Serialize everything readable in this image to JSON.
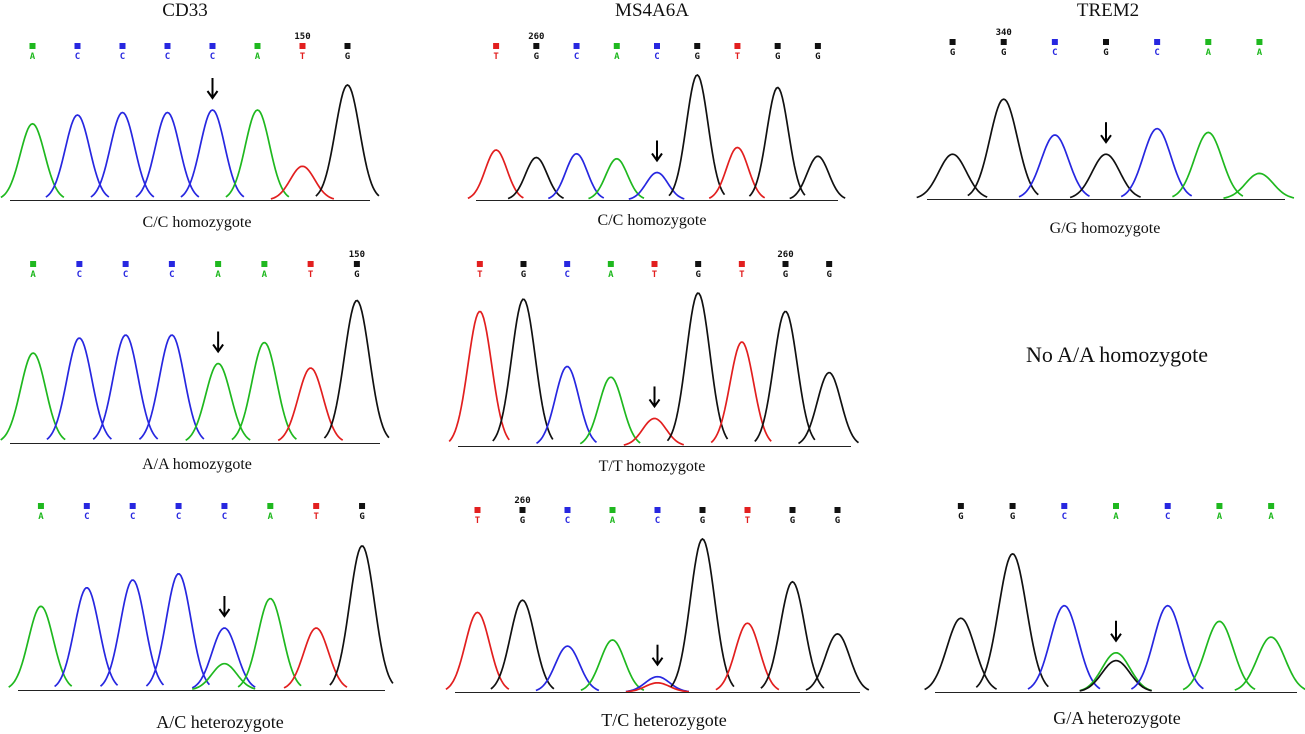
{
  "columns": [
    {
      "title": "CD33"
    },
    {
      "title": "MS4A6A"
    },
    {
      "title": "TREM2"
    }
  ],
  "colors": {
    "A": "#1fb81f",
    "C": "#2727e0",
    "G": "#111111",
    "T": "#e21f1f"
  },
  "panels": [
    {
      "gene": "CD33",
      "caption": "C/C homozygote",
      "bases": [
        "A",
        "C",
        "C",
        "C",
        "C",
        "A",
        "T",
        "G"
      ],
      "position_label": "150",
      "position_index": 6,
      "arrow_index": 4,
      "peaks": [
        [
          "A",
          0.61
        ],
        [
          "C",
          0.68
        ],
        [
          "C",
          0.7
        ],
        [
          "C",
          0.7
        ],
        [
          "C",
          0.72
        ],
        [
          "A",
          0.72
        ],
        [
          "T",
          0.27
        ],
        [
          "G",
          0.92
        ]
      ]
    },
    {
      "gene": "MS4A6A",
      "caption": "C/C homozygote",
      "bases": [
        "T",
        "G",
        "C",
        "A",
        "C",
        "G",
        "T",
        "G",
        "G"
      ],
      "position_label": "260",
      "position_index": 1,
      "arrow_index": 4,
      "peaks": [
        [
          "T",
          0.4
        ],
        [
          "G",
          0.34
        ],
        [
          "C",
          0.37
        ],
        [
          "A",
          0.33
        ],
        [
          "C",
          0.22
        ],
        [
          "G",
          1.0
        ],
        [
          "T",
          0.42
        ],
        [
          "G",
          0.9
        ],
        [
          "G",
          0.35
        ]
      ]
    },
    {
      "gene": "TREM2",
      "caption": "G/G homozygote",
      "bases": [
        "G",
        "G",
        "C",
        "G",
        "C",
        "A",
        "A"
      ],
      "position_label": "340",
      "position_index": 1,
      "arrow_index": 3,
      "peaks": [
        [
          "G",
          0.35
        ],
        [
          "G",
          0.78
        ],
        [
          "C",
          0.5
        ],
        [
          "G",
          0.35
        ],
        [
          "C",
          0.55
        ],
        [
          "A",
          0.52
        ],
        [
          "A",
          0.2
        ]
      ]
    },
    {
      "gene": "CD33",
      "caption": "A/A homozygote",
      "bases": [
        "A",
        "C",
        "C",
        "C",
        "A",
        "A",
        "T",
        "G"
      ],
      "position_label": "150",
      "position_index": 7,
      "arrow_index": 4,
      "peaks": [
        [
          "A",
          0.6
        ],
        [
          "C",
          0.7
        ],
        [
          "C",
          0.72
        ],
        [
          "C",
          0.72
        ],
        [
          "A",
          0.53
        ],
        [
          "A",
          0.67
        ],
        [
          "T",
          0.5
        ],
        [
          "G",
          0.95
        ]
      ]
    },
    {
      "gene": "MS4A6A",
      "caption": "T/T homozygote",
      "bases": [
        "T",
        "G",
        "C",
        "A",
        "T",
        "G",
        "T",
        "G",
        "G"
      ],
      "position_label": "260",
      "position_index": 7,
      "arrow_index": 4,
      "peaks": [
        [
          "T",
          0.88
        ],
        [
          "G",
          0.96
        ],
        [
          "C",
          0.52
        ],
        [
          "A",
          0.45
        ],
        [
          "T",
          0.18
        ],
        [
          "G",
          1.0
        ],
        [
          "T",
          0.68
        ],
        [
          "G",
          0.88
        ],
        [
          "G",
          0.48
        ]
      ]
    },
    {
      "gene": "TREM2",
      "note": "No A/A homozygote"
    },
    {
      "gene": "CD33",
      "caption": "A/C heterozygote",
      "bases": [
        "A",
        "C",
        "C",
        "C",
        "C",
        "A",
        "T",
        "G"
      ],
      "position_label": "",
      "position_index": -1,
      "arrow_index": 4,
      "peaks": [
        [
          "A",
          0.54
        ],
        [
          "C",
          0.66
        ],
        [
          "C",
          0.71
        ],
        [
          "C",
          0.75
        ],
        [
          "C",
          0.4,
          "A",
          0.17
        ],
        [
          "A",
          0.59
        ],
        [
          "T",
          0.4
        ],
        [
          "G",
          0.93
        ]
      ]
    },
    {
      "gene": "MS4A6A",
      "caption": "T/C heterozygote",
      "bases": [
        "T",
        "G",
        "C",
        "A",
        "C",
        "G",
        "T",
        "G",
        "G"
      ],
      "position_label": "260",
      "position_index": 1,
      "arrow_index": 4,
      "peaks": [
        [
          "T",
          0.52
        ],
        [
          "G",
          0.6
        ],
        [
          "C",
          0.3
        ],
        [
          "A",
          0.34
        ],
        [
          "C",
          0.1,
          "T",
          0.06
        ],
        [
          "G",
          1.0
        ],
        [
          "T",
          0.45
        ],
        [
          "G",
          0.72
        ],
        [
          "G",
          0.38
        ]
      ]
    },
    {
      "gene": "TREM2",
      "caption": "G/A heterozygote",
      "bases": [
        "G",
        "G",
        "C",
        "A",
        "C",
        "A",
        "A"
      ],
      "position_label": "",
      "position_index": -1,
      "arrow_index": 3,
      "peaks": [
        [
          "G",
          0.47
        ],
        [
          "G",
          0.88
        ],
        [
          "C",
          0.55
        ],
        [
          "A",
          0.25,
          "G",
          0.2
        ],
        [
          "C",
          0.55
        ],
        [
          "A",
          0.45
        ],
        [
          "A",
          0.35
        ]
      ]
    }
  ]
}
